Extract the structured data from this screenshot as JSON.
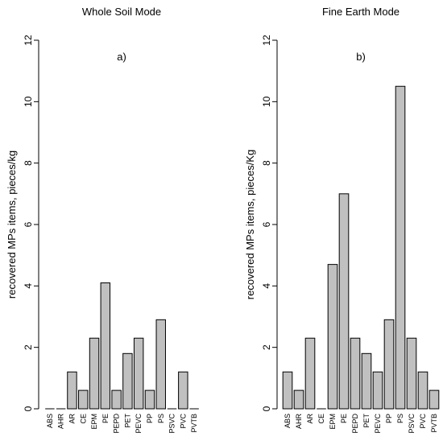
{
  "chart_data": [
    {
      "type": "bar",
      "title": "Whole Soil Mode",
      "annotation": "a)",
      "ylabel": "recovered MPs items, pieces/kg",
      "xlabel": "",
      "ylim": [
        0,
        12
      ],
      "yticks": [
        0,
        2,
        4,
        6,
        8,
        10,
        12
      ],
      "grid": false,
      "bar_color": "#c0c0c0",
      "categories": [
        "ABS",
        "AHR",
        "AR",
        "CE",
        "EPM",
        "PE",
        "PEPD",
        "PET",
        "PEVC",
        "PP",
        "PS",
        "PSVC",
        "PVC",
        "PVTB"
      ],
      "values": [
        0,
        0,
        1.2,
        0.6,
        2.3,
        4.1,
        0.6,
        1.8,
        2.3,
        0.6,
        2.9,
        0,
        1.2,
        0
      ]
    },
    {
      "type": "bar",
      "title": "Fine Earth Mode",
      "annotation": "b)",
      "ylabel": "recovered MPs items, pieces/Kg",
      "xlabel": "",
      "ylim": [
        0,
        12
      ],
      "yticks": [
        0,
        2,
        4,
        6,
        8,
        10,
        12
      ],
      "grid": false,
      "bar_color": "#c0c0c0",
      "categories": [
        "ABS",
        "AHR",
        "AR",
        "CE",
        "EPM",
        "PE",
        "PEPD",
        "PET",
        "PEVC",
        "PP",
        "PS",
        "PSVC",
        "PVC",
        "PVTB"
      ],
      "values": [
        1.2,
        0.6,
        2.3,
        0,
        4.7,
        7.0,
        2.3,
        1.8,
        1.2,
        2.9,
        10.5,
        2.3,
        1.2,
        0.6
      ]
    }
  ]
}
